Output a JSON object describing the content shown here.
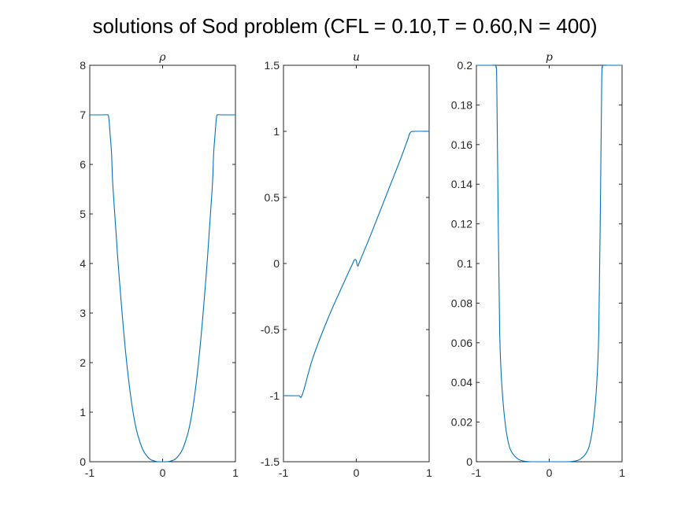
{
  "page": {
    "title": "solutions of Sod problem (CFL = 0.10,T = 0.60,N = 400)"
  },
  "colors": {
    "line": "#0072BD",
    "axis": "#262626",
    "background": "#ffffff"
  },
  "chart_data": [
    {
      "type": "line",
      "title": "ρ",
      "xlim": [
        -1,
        1
      ],
      "ylim": [
        0,
        8
      ],
      "xticks": [
        -1,
        0,
        1
      ],
      "xtick_labels": [
        "-1",
        "0",
        "1"
      ],
      "yticks": [
        0,
        1,
        2,
        3,
        4,
        5,
        6,
        7,
        8
      ],
      "ytick_labels": [
        "0",
        "1",
        "2",
        "3",
        "4",
        "5",
        "6",
        "7",
        "8"
      ],
      "series": [
        {
          "x": [
            -1.0,
            -0.8,
            -0.76,
            -0.74,
            -0.72,
            -0.7,
            -0.68,
            -0.6,
            -0.5,
            -0.4,
            -0.3,
            -0.2,
            -0.1,
            0.0,
            0.1,
            0.2,
            0.3,
            0.4,
            0.5,
            0.6,
            0.68,
            0.7,
            0.72,
            0.74,
            0.76,
            0.8,
            1.0
          ],
          "y": [
            7.0,
            7.0,
            7.0,
            6.95,
            6.6,
            6.2,
            5.5,
            3.8,
            2.1,
            0.95,
            0.35,
            0.09,
            0.01,
            0.0,
            0.01,
            0.09,
            0.35,
            0.95,
            2.1,
            3.8,
            5.5,
            6.2,
            6.6,
            6.95,
            7.0,
            7.0,
            7.0
          ]
        }
      ]
    },
    {
      "type": "line",
      "title": "u",
      "xlim": [
        -1,
        1
      ],
      "ylim": [
        -1.5,
        1.5
      ],
      "xticks": [
        -1,
        0,
        1
      ],
      "xtick_labels": [
        "-1",
        "0",
        "1"
      ],
      "yticks": [
        -1.5,
        -1,
        -0.5,
        0,
        0.5,
        1,
        1.5
      ],
      "ytick_labels": [
        "-1.5",
        "-1",
        "-0.5",
        "0",
        "0.5",
        "1",
        "1.5"
      ],
      "series": [
        {
          "x": [
            -1.0,
            -0.8,
            -0.74,
            -0.6,
            -0.4,
            -0.2,
            -0.05,
            -0.02,
            0.0,
            0.02,
            0.05,
            0.2,
            0.4,
            0.6,
            0.7,
            0.74,
            0.8,
            1.0
          ],
          "y": [
            -1.0,
            -1.0,
            -0.99,
            -0.72,
            -0.43,
            -0.18,
            0.0,
            0.03,
            0.02,
            -0.02,
            0.02,
            0.22,
            0.5,
            0.78,
            0.93,
            0.99,
            1.0,
            1.0
          ]
        }
      ]
    },
    {
      "type": "line",
      "title": "p",
      "xlim": [
        -1,
        1
      ],
      "ylim": [
        0,
        0.2
      ],
      "xticks": [
        -1,
        0,
        1
      ],
      "xtick_labels": [
        "-1",
        "0",
        "1"
      ],
      "yticks": [
        0,
        0.02,
        0.04,
        0.06,
        0.08,
        0.1,
        0.12,
        0.14,
        0.16,
        0.18,
        0.2
      ],
      "ytick_labels": [
        "0",
        "0.02",
        "0.04",
        "0.06",
        "0.08",
        "0.1",
        "0.12",
        "0.14",
        "0.16",
        "0.18",
        "0.2"
      ],
      "series": [
        {
          "x": [
            -1.0,
            -0.8,
            -0.75,
            -0.73,
            -0.72,
            -0.7,
            -0.68,
            -0.65,
            -0.6,
            -0.55,
            -0.5,
            -0.45,
            -0.4,
            -0.3,
            -0.2,
            0.0,
            0.2,
            0.3,
            0.4,
            0.45,
            0.5,
            0.55,
            0.6,
            0.65,
            0.68,
            0.7,
            0.72,
            0.73,
            0.75,
            0.8,
            1.0
          ],
          "y": [
            0.2,
            0.2,
            0.2,
            0.199,
            0.19,
            0.12,
            0.065,
            0.038,
            0.018,
            0.008,
            0.004,
            0.002,
            0.0008,
            0.0001,
            0.0,
            0.0,
            0.0,
            0.0001,
            0.0008,
            0.002,
            0.004,
            0.008,
            0.018,
            0.038,
            0.065,
            0.12,
            0.19,
            0.199,
            0.2,
            0.2,
            0.2
          ]
        }
      ]
    }
  ]
}
